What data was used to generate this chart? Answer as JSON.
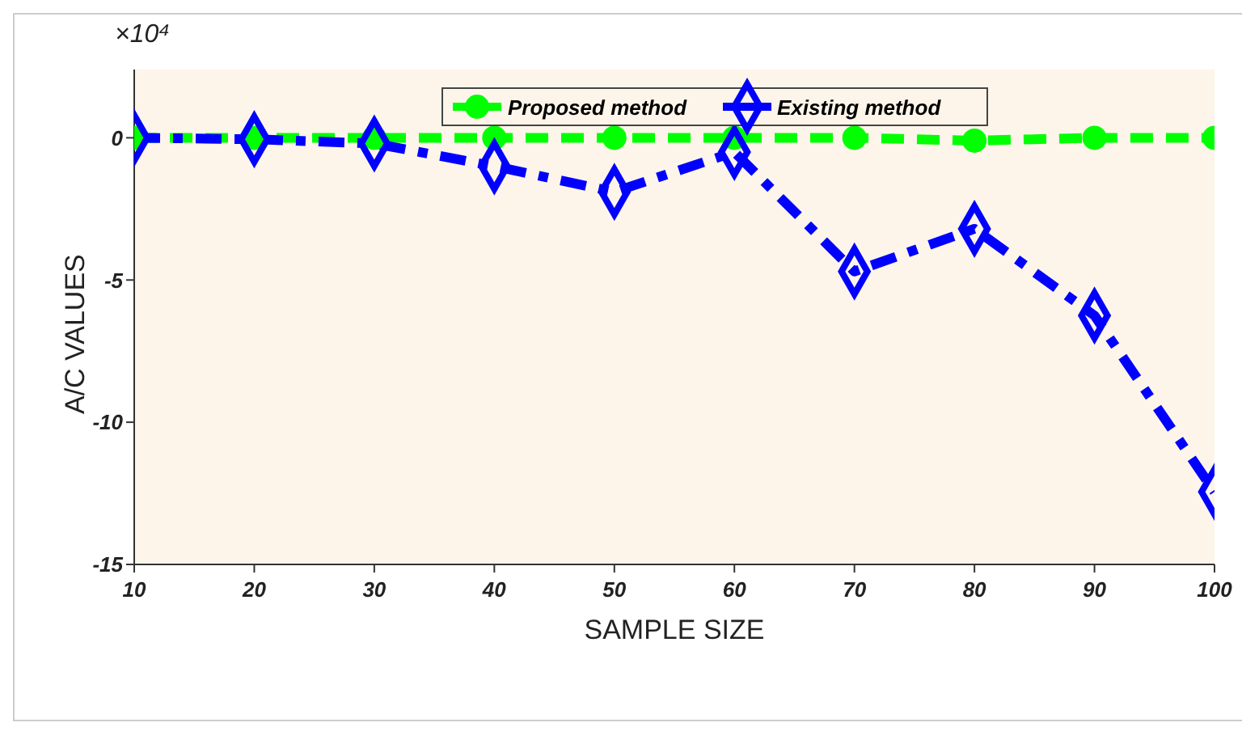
{
  "chart_data": {
    "type": "line",
    "xlabel": "SAMPLE SIZE",
    "ylabel": "A/C VALUES",
    "annotations": [
      "×10⁴"
    ],
    "x": [
      10,
      20,
      30,
      40,
      50,
      60,
      70,
      80,
      90,
      100
    ],
    "series": [
      {
        "name": "Proposed method",
        "color": "#00ff00",
        "marker": "circle",
        "line_style": "dashed",
        "values": [
          0,
          0,
          0,
          0,
          0,
          0,
          0,
          -0.1,
          0,
          0
        ]
      },
      {
        "name": "Existing method",
        "color": "#0000ff",
        "marker": "diamond",
        "line_style": "dashed",
        "values": [
          0,
          -0.05,
          -0.2,
          -1.0,
          -1.9,
          -0.5,
          -4.7,
          -3.2,
          -6.25,
          -12.45
        ]
      }
    ],
    "xlim": [
      10,
      100
    ],
    "xticks": [
      10,
      20,
      30,
      40,
      50,
      60,
      70,
      80,
      90,
      100
    ],
    "ylim": [
      -15,
      2.4
    ],
    "yticks": [
      -15,
      -10,
      -5,
      0
    ],
    "grid": false,
    "legend": "top"
  }
}
